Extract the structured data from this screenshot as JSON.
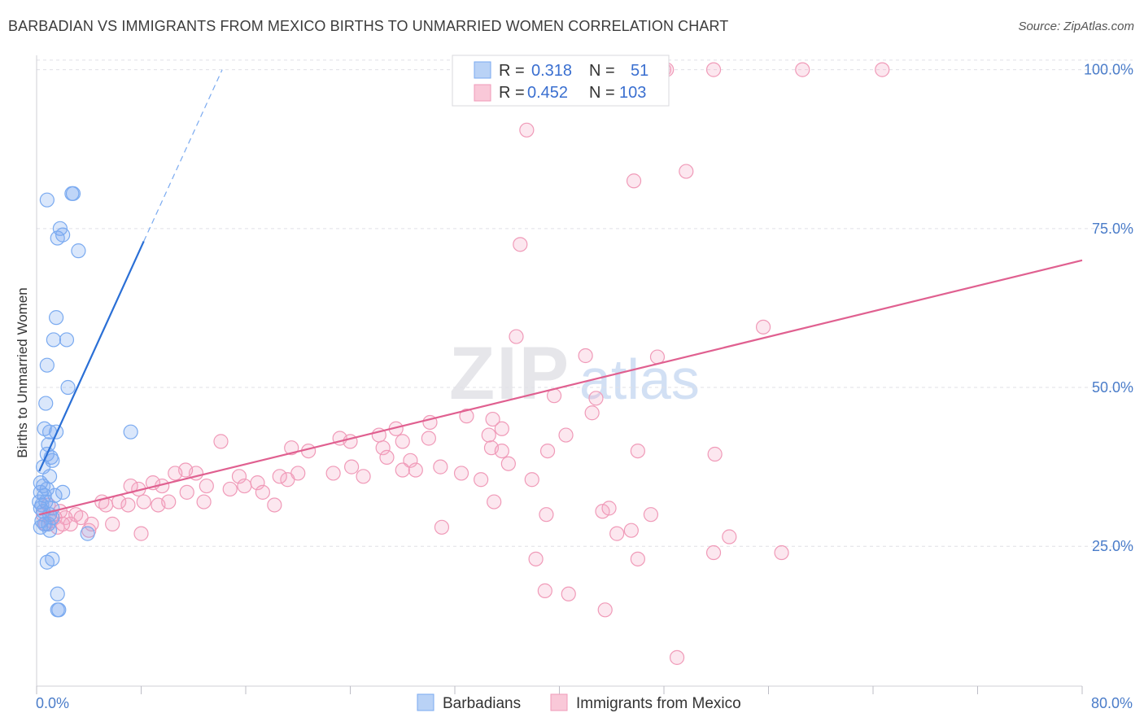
{
  "title": "BARBADIAN VS IMMIGRANTS FROM MEXICO BIRTHS TO UNMARRIED WOMEN CORRELATION CHART",
  "source": "Source: ZipAtlas.com",
  "watermark": {
    "zip": "ZIP",
    "atlas": "atlas"
  },
  "colors": {
    "barbadians": "#7aaaf0",
    "barbadians_line": "#2a6fd6",
    "mexico": "#f09ab8",
    "mexico_line": "#e06090",
    "grid": "#e0e0e6",
    "tick_label": "#4a7cc9"
  },
  "legend": {
    "r_label": "R =",
    "n_label": "N =",
    "series": [
      {
        "name": "Barbadians",
        "r": "0.318",
        "n": "51"
      },
      {
        "name": "Immigrants from Mexico",
        "r": "0.452",
        "n": "103"
      }
    ]
  },
  "chart_data": {
    "type": "scatter",
    "title": "BARBADIAN VS IMMIGRANTS FROM MEXICO BIRTHS TO UNMARRIED WOMEN CORRELATION CHART",
    "xlabel": "",
    "ylabel": "Births to Unmarried Women",
    "xlim": [
      0,
      80
    ],
    "ylim": [
      3,
      102
    ],
    "x_tick_labels": [
      "0.0%",
      "80.0%"
    ],
    "y_ticks": [
      25,
      50,
      75,
      100
    ],
    "y_tick_labels": [
      "25.0%",
      "50.0%",
      "75.0%",
      "100.0%"
    ],
    "legend_position": "top-center",
    "series": [
      {
        "name": "Barbadians",
        "points": [
          [
            0.8,
            79.5
          ],
          [
            2.8,
            80.5
          ],
          [
            2.7,
            80.5
          ],
          [
            1.8,
            75.0
          ],
          [
            1.6,
            73.5
          ],
          [
            2.0,
            74.0
          ],
          [
            3.2,
            71.5
          ],
          [
            1.5,
            61.0
          ],
          [
            1.3,
            57.5
          ],
          [
            2.3,
            57.5
          ],
          [
            0.8,
            53.5
          ],
          [
            2.4,
            50.0
          ],
          [
            0.7,
            47.5
          ],
          [
            0.6,
            43.5
          ],
          [
            1.0,
            43.0
          ],
          [
            1.5,
            43.0
          ],
          [
            7.2,
            43.0
          ],
          [
            0.9,
            41.0
          ],
          [
            0.8,
            39.5
          ],
          [
            1.1,
            39.0
          ],
          [
            0.5,
            37.5
          ],
          [
            1.2,
            38.5
          ],
          [
            1.0,
            36.0
          ],
          [
            0.3,
            35.0
          ],
          [
            0.5,
            34.5
          ],
          [
            0.8,
            34.0
          ],
          [
            0.3,
            33.5
          ],
          [
            0.6,
            33.0
          ],
          [
            2.0,
            33.5
          ],
          [
            1.4,
            33.0
          ],
          [
            0.2,
            32.0
          ],
          [
            0.4,
            31.5
          ],
          [
            0.7,
            32.0
          ],
          [
            1.2,
            31.0
          ],
          [
            0.3,
            31.0
          ],
          [
            0.5,
            30.5
          ],
          [
            1.0,
            30.0
          ],
          [
            1.2,
            29.5
          ],
          [
            0.4,
            29.0
          ],
          [
            0.6,
            28.5
          ],
          [
            0.3,
            28.0
          ],
          [
            0.9,
            28.5
          ],
          [
            1.0,
            27.5
          ],
          [
            3.9,
            27.0
          ],
          [
            1.2,
            23.0
          ],
          [
            0.8,
            22.5
          ],
          [
            1.6,
            17.5
          ],
          [
            1.6,
            15.0
          ],
          [
            1.7,
            15.0
          ]
        ],
        "trend": {
          "x": [
            0.2,
            8.2
          ],
          "y": [
            36.8,
            73.0
          ],
          "dashed_to": [
            14.2,
            100.0
          ]
        }
      },
      {
        "name": "Immigrants from Mexico",
        "points": [
          [
            48.0,
            100.0
          ],
          [
            48.2,
            100.0
          ],
          [
            51.8,
            100.0
          ],
          [
            58.6,
            100.0
          ],
          [
            64.7,
            100.0
          ],
          [
            37.5,
            90.5
          ],
          [
            45.7,
            82.5
          ],
          [
            49.7,
            84.0
          ],
          [
            37.0,
            72.5
          ],
          [
            55.6,
            59.5
          ],
          [
            36.7,
            58.0
          ],
          [
            42.0,
            55.0
          ],
          [
            47.5,
            54.8
          ],
          [
            39.6,
            48.7
          ],
          [
            42.8,
            48.3
          ],
          [
            34.9,
            45.0
          ],
          [
            32.9,
            45.5
          ],
          [
            35.6,
            43.5
          ],
          [
            34.6,
            42.5
          ],
          [
            30.1,
            44.5
          ],
          [
            27.5,
            43.5
          ],
          [
            30.0,
            42.0
          ],
          [
            34.8,
            40.5
          ],
          [
            35.6,
            40.0
          ],
          [
            40.5,
            42.5
          ],
          [
            39.1,
            40.0
          ],
          [
            42.5,
            46.0
          ],
          [
            46.0,
            40.0
          ],
          [
            51.9,
            39.5
          ],
          [
            26.5,
            40.5
          ],
          [
            28.0,
            41.5
          ],
          [
            23.2,
            42.0
          ],
          [
            24.0,
            41.5
          ],
          [
            26.2,
            42.5
          ],
          [
            19.5,
            40.5
          ],
          [
            14.1,
            41.5
          ],
          [
            20.8,
            40.0
          ],
          [
            24.1,
            37.5
          ],
          [
            26.8,
            39.0
          ],
          [
            28.6,
            38.5
          ],
          [
            29.0,
            37.0
          ],
          [
            30.9,
            37.5
          ],
          [
            32.5,
            36.5
          ],
          [
            34.0,
            35.5
          ],
          [
            36.1,
            38.0
          ],
          [
            37.9,
            35.5
          ],
          [
            35.0,
            32.0
          ],
          [
            28.0,
            37.0
          ],
          [
            25.0,
            36.0
          ],
          [
            22.7,
            36.5
          ],
          [
            20.0,
            36.5
          ],
          [
            19.2,
            35.5
          ],
          [
            18.6,
            36.0
          ],
          [
            16.9,
            35.0
          ],
          [
            15.5,
            36.0
          ],
          [
            14.8,
            34.0
          ],
          [
            13.0,
            34.5
          ],
          [
            12.2,
            36.5
          ],
          [
            11.4,
            37.0
          ],
          [
            10.6,
            36.5
          ],
          [
            9.6,
            34.5
          ],
          [
            8.9,
            35.0
          ],
          [
            7.8,
            34.0
          ],
          [
            7.2,
            34.5
          ],
          [
            5.0,
            32.0
          ],
          [
            6.3,
            32.0
          ],
          [
            5.3,
            31.5
          ],
          [
            7.0,
            31.5
          ],
          [
            8.2,
            32.0
          ],
          [
            9.3,
            31.5
          ],
          [
            10.1,
            32.0
          ],
          [
            11.5,
            33.5
          ],
          [
            12.8,
            32.0
          ],
          [
            15.9,
            34.5
          ],
          [
            17.3,
            33.5
          ],
          [
            18.2,
            31.5
          ],
          [
            3.0,
            30.0
          ],
          [
            2.2,
            29.5
          ],
          [
            1.8,
            30.5
          ],
          [
            4.2,
            28.5
          ],
          [
            3.4,
            29.5
          ],
          [
            2.6,
            28.5
          ],
          [
            1.4,
            29.5
          ],
          [
            0.9,
            31.5
          ],
          [
            0.5,
            30.0
          ],
          [
            0.7,
            28.5
          ],
          [
            1.1,
            29.0
          ],
          [
            1.6,
            28.0
          ],
          [
            2.0,
            28.5
          ],
          [
            4.0,
            27.5
          ],
          [
            5.8,
            28.5
          ],
          [
            8.0,
            27.0
          ],
          [
            31.0,
            28.0
          ],
          [
            39.0,
            30.0
          ],
          [
            43.3,
            30.5
          ],
          [
            47.0,
            30.0
          ],
          [
            44.4,
            27.0
          ],
          [
            45.5,
            27.5
          ],
          [
            53.0,
            26.5
          ],
          [
            51.8,
            24.0
          ],
          [
            46.0,
            23.0
          ],
          [
            57.0,
            24.0
          ],
          [
            38.2,
            23.0
          ],
          [
            38.9,
            18.0
          ],
          [
            40.7,
            17.5
          ],
          [
            43.5,
            15.0
          ],
          [
            43.8,
            31.0
          ],
          [
            49.0,
            7.5
          ]
        ],
        "trend": {
          "x": [
            0.2,
            80.0
          ],
          "y": [
            30.0,
            70.0
          ]
        }
      }
    ]
  }
}
